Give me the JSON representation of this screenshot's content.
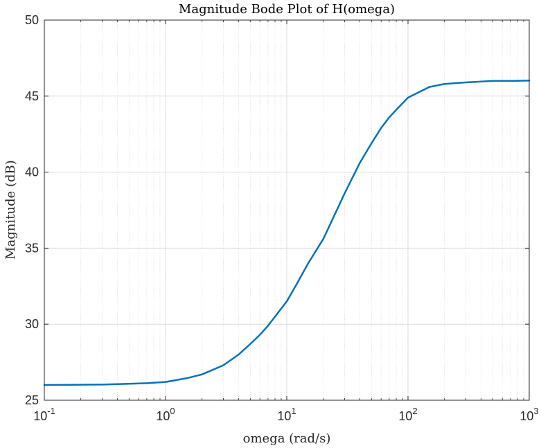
{
  "chart_data": {
    "type": "line",
    "title": "Magnitude Bode Plot of H(omega)",
    "xlabel": "omega (rad/s)",
    "ylabel": "Magnitude (dB)",
    "xscale": "log",
    "xlim": [
      0.1,
      1000
    ],
    "ylim": [
      25,
      50
    ],
    "xticks": [
      {
        "base": "10",
        "exp": "-1"
      },
      {
        "base": "10",
        "exp": "0"
      },
      {
        "base": "10",
        "exp": "1"
      },
      {
        "base": "10",
        "exp": "2"
      },
      {
        "base": "10",
        "exp": "3"
      }
    ],
    "yticks": [
      "25",
      "30",
      "35",
      "40",
      "45",
      "50"
    ],
    "grid": true,
    "minor_grid": true,
    "line_color": "#0072BD",
    "series": [
      {
        "x": [
          0.1,
          0.2,
          0.3,
          0.5,
          0.7,
          1,
          1.5,
          2,
          3,
          4,
          5,
          6,
          7,
          8,
          10,
          12,
          15,
          20,
          30,
          40,
          50,
          60,
          70,
          80,
          100,
          150,
          200,
          300,
          500,
          700,
          1000
        ],
        "y": [
          26.0,
          26.02,
          26.03,
          26.08,
          26.12,
          26.2,
          26.45,
          26.7,
          27.3,
          28.0,
          28.7,
          29.3,
          29.9,
          30.5,
          31.5,
          32.6,
          34.0,
          35.6,
          38.6,
          40.6,
          41.9,
          42.9,
          43.6,
          44.1,
          44.9,
          45.6,
          45.8,
          45.9,
          46.0,
          46.0,
          46.02
        ]
      }
    ]
  }
}
